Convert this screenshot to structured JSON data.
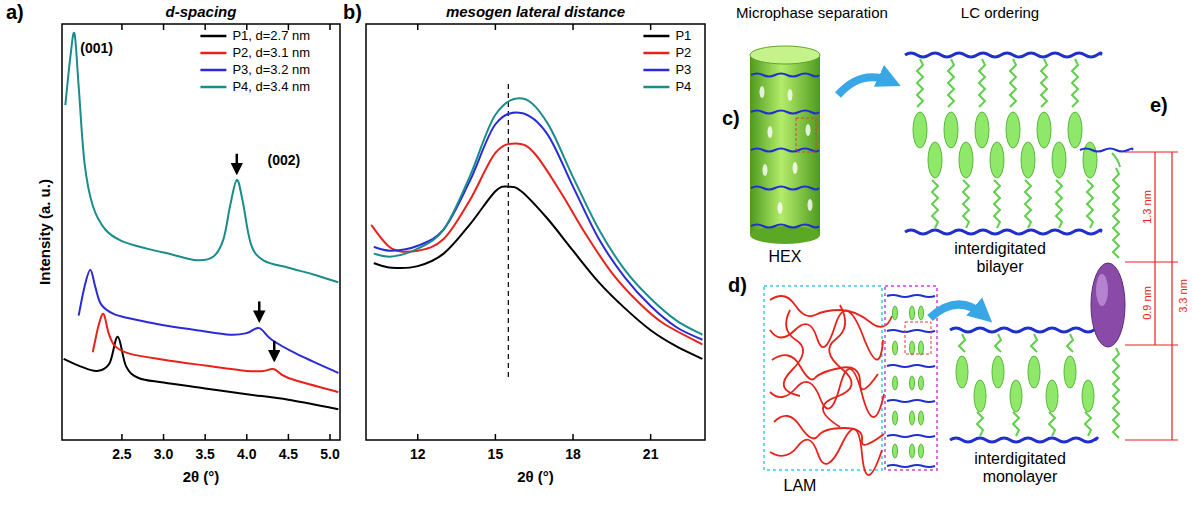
{
  "chart_data": [
    {
      "type": "line",
      "panel": "a)",
      "title": "d-spacing",
      "x_label": "2θ (°)",
      "y_label": "Intensity (a. u.)",
      "xlim": [
        1.78,
        5.12
      ],
      "ylim": [
        0,
        100
      ],
      "xticks": [
        2.5,
        {
          "value": 3,
          "label": "3.0"
        },
        3.5,
        {
          "value": 4,
          "label": "4.0"
        },
        4.5,
        {
          "value": 5,
          "label": "5.0"
        }
      ],
      "yticks": [],
      "tick_labels": "x",
      "legend": "top-right",
      "series": [
        {
          "name": "P1, d=2.7 nm",
          "color": "#000000",
          "x": [
            1.8,
            2.0,
            2.2,
            2.35,
            2.45,
            2.55,
            2.7,
            3.0,
            3.5,
            4.0,
            4.5,
            5.1
          ],
          "values": [
            19.5,
            17.7,
            16.6,
            18.4,
            24.8,
            17.7,
            14.9,
            13.8,
            12.4,
            11.0,
            9.7,
            7.4
          ]
        },
        {
          "name": "P2, d=3.1 nm",
          "color": "#e8221b",
          "x": [
            2.15,
            2.22,
            2.28,
            2.34,
            2.42,
            2.6,
            3.0,
            3.5,
            4.0,
            4.2,
            4.33,
            4.5,
            5.1
          ],
          "values": [
            21.1,
            27.6,
            30.3,
            25.7,
            22.5,
            20.7,
            19.3,
            17.9,
            16.6,
            16.6,
            17.0,
            14.9,
            11.5
          ]
        },
        {
          "name": "P3, d=3.2 nm",
          "color": "#2b2bd6",
          "x": [
            1.98,
            2.05,
            2.12,
            2.18,
            2.25,
            2.4,
            2.6,
            3.0,
            3.4,
            3.8,
            4.0,
            4.15,
            4.3,
            4.6,
            5.1
          ],
          "values": [
            29.9,
            36.8,
            40.9,
            36.8,
            32.6,
            30.3,
            29.2,
            27.6,
            26.4,
            25.3,
            25.7,
            26.9,
            24.1,
            20.7,
            16.1
          ]
        },
        {
          "name": "P4, d=3.4 nm",
          "color": "#1b8c8c",
          "x": [
            1.82,
            1.88,
            1.93,
            1.98,
            2.05,
            2.15,
            2.3,
            2.5,
            2.8,
            3.1,
            3.4,
            3.6,
            3.72,
            3.8,
            3.88,
            3.95,
            4.05,
            4.2,
            4.5,
            4.8,
            5.1
          ],
          "values": [
            80.5,
            92.0,
            97.7,
            85.1,
            66.7,
            56.3,
            50.6,
            47.8,
            46.0,
            44.6,
            43.2,
            44.1,
            48.3,
            56.3,
            62.5,
            57.5,
            47.1,
            43.2,
            41.4,
            39.8,
            37.9
          ]
        }
      ],
      "annotations": [
        {
          "text": "(001)",
          "x": 2.0,
          "y": 93
        },
        {
          "text": "(002)",
          "x": 4.25,
          "y": 66
        }
      ],
      "arrows": [
        {
          "x": 3.88,
          "y": 64
        },
        {
          "x": 4.15,
          "y": 28.5
        },
        {
          "x": 4.33,
          "y": 19
        }
      ]
    },
    {
      "type": "line",
      "panel": "b)",
      "title": "mesogen lateral distance",
      "x_label": "2θ (°)",
      "xlim": [
        10,
        23.1
      ],
      "ylim": [
        0,
        100
      ],
      "xticks": [
        12,
        15,
        18,
        21
      ],
      "yticks": [],
      "tick_labels": "x",
      "legend": "top-right",
      "reference_x": 15.5,
      "series": [
        {
          "name": "P1",
          "color": "#000000",
          "x": [
            10.3,
            11,
            12,
            13,
            14,
            15,
            15.5,
            16,
            17,
            18,
            19,
            20,
            21,
            22,
            23
          ],
          "values": [
            42.5,
            41.4,
            41.8,
            44.8,
            51.7,
            59.8,
            60.9,
            59.8,
            53.3,
            45.5,
            37.9,
            31.7,
            26.4,
            22.5,
            19.5
          ]
        },
        {
          "name": "P2",
          "color": "#e8221b",
          "x": [
            10.2,
            11,
            12,
            13,
            14,
            15,
            15.8,
            16.5,
            17.5,
            18.5,
            19.5,
            20.5,
            21.5,
            23
          ],
          "values": [
            51.7,
            46.0,
            45.5,
            48.3,
            57.5,
            69.0,
            71.3,
            69.0,
            59.8,
            49.4,
            40.2,
            33.3,
            28.0,
            23.0
          ]
        },
        {
          "name": "P3",
          "color": "#2b2bd6",
          "x": [
            10.3,
            11,
            12,
            13,
            14,
            15,
            16,
            17,
            18,
            19,
            20,
            21,
            22,
            23
          ],
          "values": [
            46.4,
            45.5,
            46.7,
            50.6,
            62.1,
            75.9,
            78.6,
            73.6,
            60.9,
            48.3,
            39.1,
            32.2,
            27.1,
            24.1
          ]
        },
        {
          "name": "P4",
          "color": "#1b8c8c",
          "x": [
            10.3,
            11,
            12,
            13,
            14,
            15,
            16.05,
            17,
            18,
            19,
            20,
            21,
            22,
            23
          ],
          "values": [
            44.8,
            44.1,
            46.0,
            50.6,
            63.2,
            78.2,
            82.1,
            76.3,
            63.2,
            50.6,
            40.9,
            34.0,
            28.7,
            25.3
          ]
        }
      ]
    }
  ],
  "diagram": {
    "headers": [
      "Microphase separation",
      "LC ordering"
    ],
    "panels": [
      {
        "letter": "c)",
        "morphology": "HEX",
        "structure": "interdigitated bilayer"
      },
      {
        "letter": "d)",
        "morphology": "LAM",
        "structure": "interdigitated monolayer"
      },
      {
        "letter": "e)",
        "dimensions": [
          "1.3 nm",
          "0.9 nm",
          "3.3 nm"
        ]
      }
    ]
  }
}
